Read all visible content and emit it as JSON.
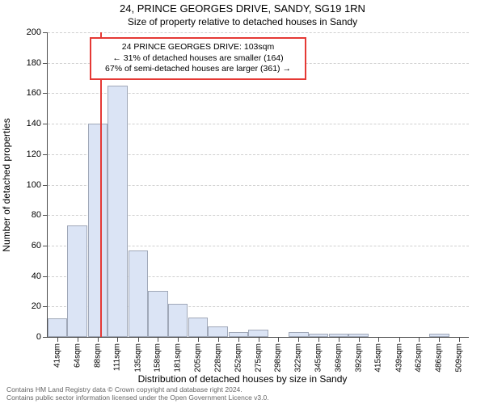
{
  "titles": {
    "main": "24, PRINCE GEORGES DRIVE, SANDY, SG19 1RN",
    "sub": "Size of property relative to detached houses in Sandy"
  },
  "axes": {
    "ylabel": "Number of detached properties",
    "xlabel": "Distribution of detached houses by size in Sandy",
    "ymax": 200,
    "ytick_step": 20,
    "yticks": [
      0,
      20,
      40,
      60,
      80,
      100,
      120,
      140,
      160,
      180,
      200
    ]
  },
  "chart": {
    "type": "histogram",
    "bar_fill": "#dbe4f5",
    "bar_border": "#a0a8b8",
    "grid_color": "#d0d0d0",
    "axis_color": "#4d4d4d",
    "background": "#ffffff",
    "bin_width_sqm": 23,
    "bins": [
      {
        "label": "41sqm",
        "low": 41,
        "value": 12
      },
      {
        "label": "64sqm",
        "low": 64,
        "value": 73
      },
      {
        "label": "88sqm",
        "low": 88,
        "value": 140
      },
      {
        "label": "111sqm",
        "low": 111,
        "value": 165
      },
      {
        "label": "135sqm",
        "low": 135,
        "value": 57
      },
      {
        "label": "158sqm",
        "low": 158,
        "value": 30
      },
      {
        "label": "181sqm",
        "low": 181,
        "value": 22
      },
      {
        "label": "205sqm",
        "low": 205,
        "value": 13
      },
      {
        "label": "228sqm",
        "low": 228,
        "value": 7
      },
      {
        "label": "252sqm",
        "low": 252,
        "value": 3
      },
      {
        "label": "275sqm",
        "low": 275,
        "value": 5
      },
      {
        "label": "298sqm",
        "low": 298,
        "value": 0
      },
      {
        "label": "322sqm",
        "low": 322,
        "value": 3
      },
      {
        "label": "345sqm",
        "low": 345,
        "value": 2
      },
      {
        "label": "369sqm",
        "low": 369,
        "value": 2
      },
      {
        "label": "392sqm",
        "low": 392,
        "value": 2
      },
      {
        "label": "415sqm",
        "low": 415,
        "value": 0
      },
      {
        "label": "439sqm",
        "low": 439,
        "value": 0
      },
      {
        "label": "462sqm",
        "low": 462,
        "value": 0
      },
      {
        "label": "486sqm",
        "low": 486,
        "value": 2
      },
      {
        "label": "509sqm",
        "low": 509,
        "value": 0
      }
    ],
    "x_domain_min": 41,
    "x_domain_max": 532
  },
  "marker": {
    "value_sqm": 103,
    "color": "#e53935",
    "line_width": 2
  },
  "annotation": {
    "lines": [
      "24 PRINCE GEORGES DRIVE: 103sqm",
      "← 31% of detached houses are smaller (164)",
      "67% of semi-detached houses are larger (361) →"
    ],
    "border_color": "#e53935",
    "font_size": 10.5
  },
  "footer": {
    "line1": "Contains HM Land Registry data © Crown copyright and database right 2024.",
    "line2": "Contains public sector information licensed under the Open Government Licence v3.0."
  }
}
